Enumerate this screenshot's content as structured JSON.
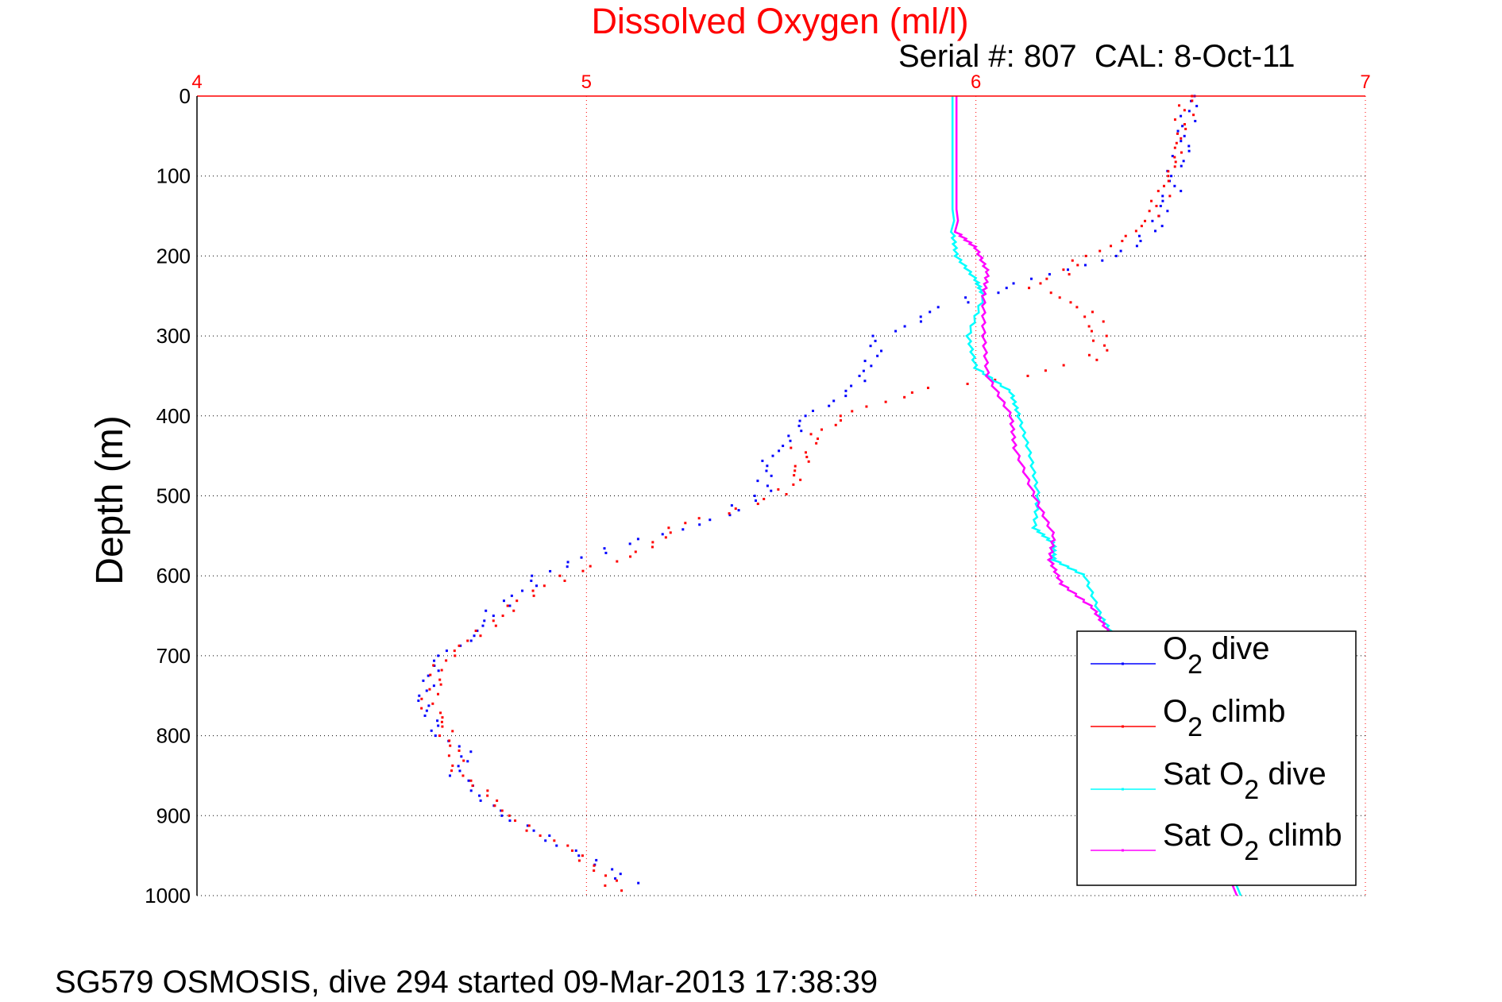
{
  "chart_data": {
    "type": "scatter",
    "title": "Dissolved Oxygen (ml/l)",
    "subtitle": "Serial #: 807  CAL: 8-Oct-11",
    "xlabel": "",
    "ylabel": "Depth (m)",
    "footer": "SG579 OSMOSIS, dive 294 started 09-Mar-2013 17:38:39",
    "xlim": [
      4,
      7
    ],
    "ylim": [
      0,
      1000
    ],
    "y_reversed": true,
    "x_axis_location": "top",
    "xticks": [
      "4",
      "5",
      "6",
      "7"
    ],
    "yticks": [
      "0",
      "100",
      "200",
      "300",
      "400",
      "500",
      "600",
      "700",
      "800",
      "900",
      "1000"
    ],
    "grid": true,
    "legend_placement": "bottom-right",
    "colors": {
      "title": "#ff0000",
      "xticks": "#ff0000",
      "xgrid": "#ff0000",
      "ygrid": "#000000"
    },
    "series": [
      {
        "name": "O2 dive",
        "label_main": "O",
        "label_sub": "2",
        "label_rest": " dive",
        "label_pre": "",
        "color": "#0000ff",
        "style": "dots",
        "depth": [
          0,
          50,
          100,
          150,
          200,
          240,
          270,
          300,
          350,
          400,
          450,
          500,
          530,
          560,
          600,
          650,
          700,
          750,
          800,
          820,
          850,
          900,
          950,
          990
        ],
        "value": [
          6.55,
          6.54,
          6.51,
          6.49,
          6.36,
          6.07,
          5.89,
          5.76,
          5.72,
          5.57,
          5.47,
          5.45,
          5.32,
          5.1,
          4.88,
          4.75,
          4.64,
          4.58,
          4.63,
          4.7,
          4.67,
          4.8,
          4.99,
          5.13
        ]
      },
      {
        "name": "O2 climb",
        "label_main": "O",
        "label_sub": "2",
        "label_rest": " climb",
        "label_pre": "",
        "color": "#ff0000",
        "style": "dots",
        "depth": [
          0,
          100,
          150,
          200,
          240,
          270,
          300,
          330,
          350,
          365,
          400,
          440,
          480,
          510,
          540,
          570,
          600,
          650,
          700,
          760,
          800,
          850,
          900,
          950,
          1000
        ],
        "value": [
          6.55,
          6.5,
          6.46,
          6.29,
          6.16,
          6.29,
          6.33,
          6.31,
          6.11,
          5.88,
          5.67,
          5.55,
          5.55,
          5.45,
          5.22,
          5.13,
          4.95,
          4.78,
          4.64,
          4.59,
          4.64,
          4.68,
          4.8,
          4.98,
          5.1
        ]
      },
      {
        "name": "Sat O2 dive",
        "label_pre": "Sat ",
        "label_main": "O",
        "label_sub": "2",
        "label_rest": " dive",
        "color": "#00ffff",
        "style": "line",
        "depth": [
          0,
          170,
          200,
          230,
          250,
          300,
          340,
          370,
          400,
          450,
          500,
          540,
          560,
          580,
          600,
          650,
          680,
          1000
        ],
        "value": [
          5.94,
          5.94,
          5.95,
          6.0,
          6.02,
          5.98,
          6.0,
          6.09,
          6.11,
          6.14,
          6.16,
          6.15,
          6.2,
          6.2,
          6.28,
          6.32,
          6.36,
          6.68
        ]
      },
      {
        "name": "Sat O2 climb",
        "label_pre": "Sat ",
        "label_main": "O",
        "label_sub": "2",
        "label_rest": " climb",
        "color": "#ff00ff",
        "style": "line",
        "depth": [
          0,
          170,
          190,
          220,
          250,
          300,
          350,
          400,
          440,
          500,
          550,
          580,
          610,
          640,
          670,
          1000
        ],
        "value": [
          5.95,
          5.95,
          6.0,
          6.03,
          6.02,
          6.02,
          6.03,
          6.09,
          6.1,
          6.15,
          6.2,
          6.19,
          6.22,
          6.3,
          6.34,
          6.67
        ]
      }
    ]
  }
}
